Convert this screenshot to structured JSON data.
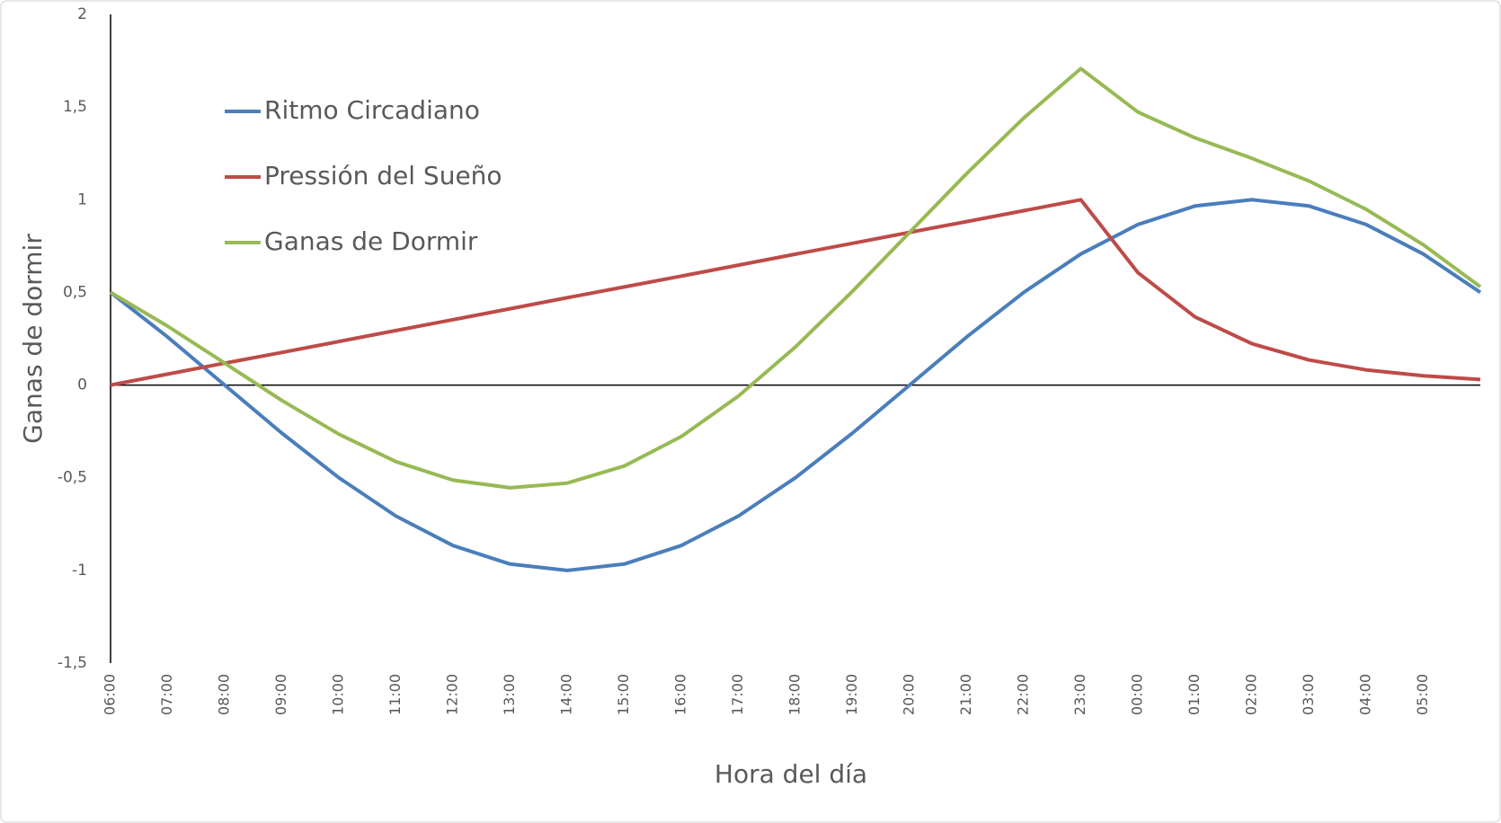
{
  "chart_data": {
    "type": "line",
    "x_label": "Hora del día",
    "y_label": "Ganas de dormir",
    "categories": [
      "06:00",
      "07:00",
      "08:00",
      "09:00",
      "10:00",
      "11:00",
      "12:00",
      "13:00",
      "14:00",
      "15:00",
      "16:00",
      "17:00",
      "18:00",
      "19:00",
      "20:00",
      "21:00",
      "22:00",
      "23:00",
      "00:00",
      "01:00",
      "02:00",
      "03:00",
      "04:00",
      "05:00",
      null
    ],
    "series": [
      {
        "name": "Ritmo Circadiano",
        "color": "#4a7ebb",
        "values": [
          0.5,
          0.259,
          0,
          -0.259,
          -0.5,
          -0.707,
          -0.866,
          -0.966,
          -1,
          -0.966,
          -0.866,
          -0.707,
          -0.5,
          -0.259,
          0,
          0.259,
          0.5,
          0.707,
          0.866,
          0.966,
          1,
          0.966,
          0.866,
          0.707,
          0.5
        ]
      },
      {
        "name": "Pressión del Sueño",
        "color": "#be4b48",
        "values": [
          0,
          0.059,
          0.118,
          0.176,
          0.235,
          0.294,
          0.353,
          0.412,
          0.471,
          0.529,
          0.588,
          0.647,
          0.706,
          0.765,
          0.824,
          0.882,
          0.941,
          1,
          0.607,
          0.368,
          0.223,
          0.135,
          0.082,
          0.05,
          0.03
        ]
      },
      {
        "name": "Ganas de Dormir",
        "color": "#98b954",
        "values": [
          0.5,
          0.318,
          0.118,
          -0.083,
          -0.265,
          -0.413,
          -0.513,
          -0.554,
          -0.529,
          -0.437,
          -0.278,
          -0.06,
          0.206,
          0.506,
          0.824,
          1.141,
          1.441,
          1.707,
          1.473,
          1.334,
          1.223,
          1.101,
          0.948,
          0.757,
          0.53
        ]
      }
    ],
    "ylim": [
      -1.5,
      2
    ],
    "yticks": [
      {
        "value": -1.5,
        "label": "-1,5"
      },
      -1,
      {
        "value": -0.5,
        "label": "-0,5"
      },
      0,
      {
        "value": 0.5,
        "label": "0,5"
      },
      1,
      {
        "value": 1.5,
        "label": "1,5"
      },
      2
    ],
    "grid": false,
    "legend": "upper left"
  }
}
